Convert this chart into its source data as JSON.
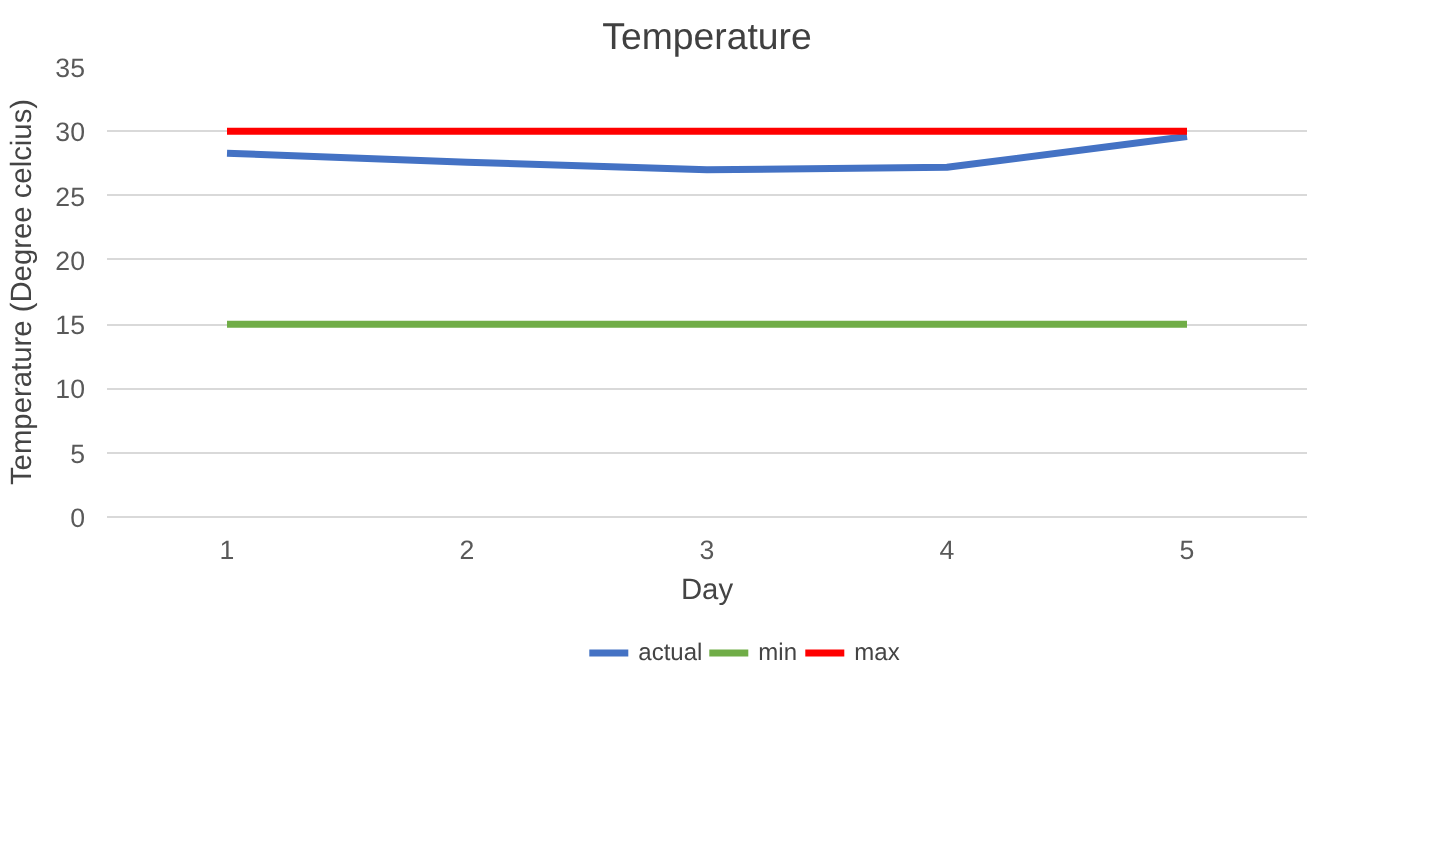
{
  "chart_data": {
    "type": "line",
    "title": "Temperature",
    "xlabel": "Day",
    "ylabel": "Temperature (Degree celcius)",
    "categories": [
      "1",
      "2",
      "3",
      "4",
      "5"
    ],
    "series": [
      {
        "name": "actual",
        "color": "#4472c4",
        "values": [
          28.3,
          27.6,
          27.0,
          27.2,
          29.6
        ]
      },
      {
        "name": "min",
        "color": "#70ad47",
        "values": [
          15,
          15,
          15,
          15,
          15
        ]
      },
      {
        "name": "max",
        "color": "#ff0000",
        "values": [
          30,
          30,
          30,
          30,
          30
        ]
      }
    ],
    "ylim": [
      0,
      35
    ],
    "yticks": [
      0,
      5,
      10,
      15,
      20,
      25,
      30,
      35
    ],
    "grid": "y",
    "legend": "bottom",
    "marker": "none",
    "line_style": "solid"
  }
}
